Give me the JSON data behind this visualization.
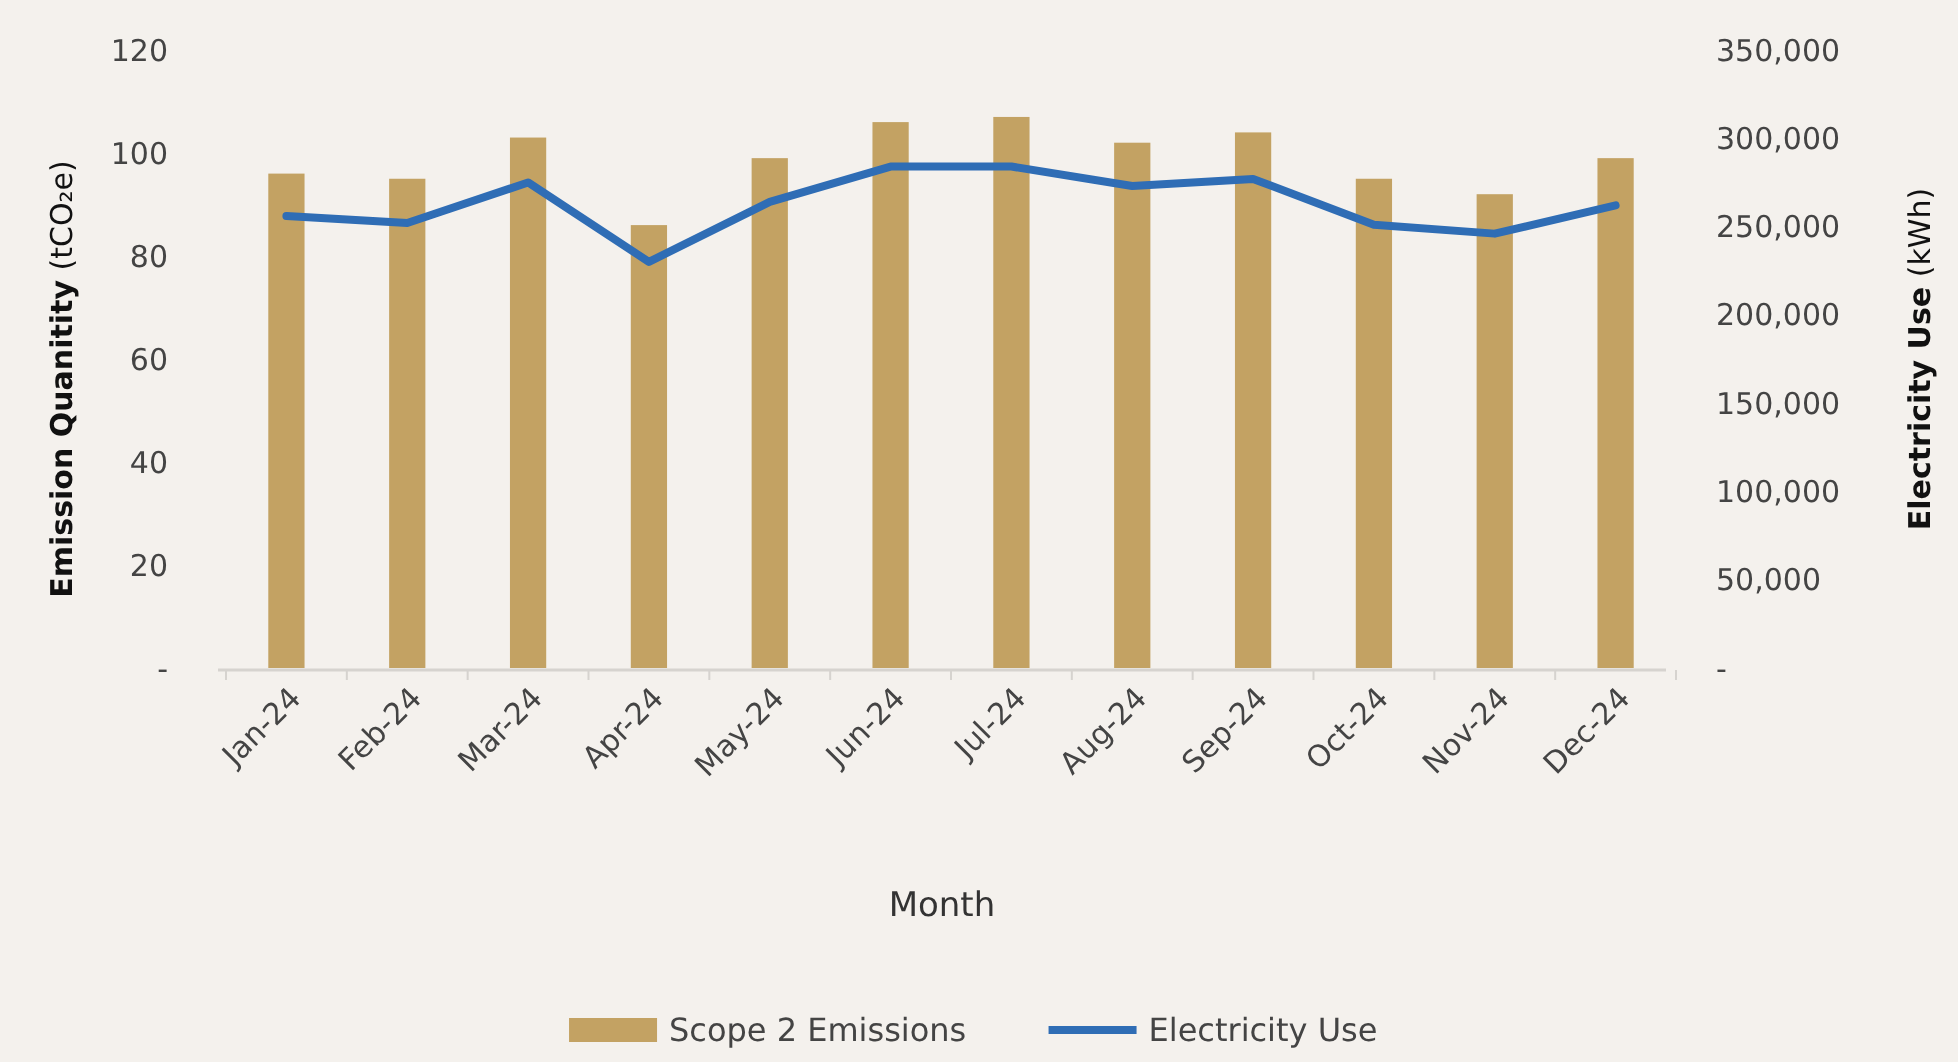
{
  "chart_data": {
    "type": "bar",
    "xlabel": "Month",
    "ylabel": "Emission Quanitity (tCO₂e)",
    "y2label": "Electricity Use (kWh)",
    "categories": [
      "Jan-24",
      "Feb-24",
      "Mar-24",
      "Apr-24",
      "May-24",
      "Jun-24",
      "Jul-24",
      "Aug-24",
      "Sep-24",
      "Oct-24",
      "Nov-24",
      "Dec-24"
    ],
    "series": [
      {
        "name": "Scope 2 Emissions",
        "color": "#c3a263",
        "values": [
          96,
          95,
          103,
          86,
          99,
          106,
          107,
          102,
          104,
          95,
          92,
          99
        ]
      },
      {
        "name": "Electricity Use",
        "type": "line",
        "axis": "y2",
        "color": "#2f6db5",
        "values": [
          256000,
          252000,
          275000,
          230000,
          264000,
          284000,
          284000,
          273000,
          277000,
          251000,
          246000,
          262000
        ]
      }
    ],
    "ylim": [
      0,
      120
    ],
    "yticks": [
      {
        "value": 0,
        "label": "-"
      },
      20,
      40,
      60,
      80,
      100,
      120
    ],
    "y2lim": [
      0,
      350000
    ],
    "y2ticks": [
      {
        "value": 0,
        "label": "-"
      },
      {
        "value": 50000,
        "label": "50,000"
      },
      {
        "value": 100000,
        "label": "100,000"
      },
      {
        "value": 150000,
        "label": "150,000"
      },
      {
        "value": 200000,
        "label": "200,000"
      },
      {
        "value": 250000,
        "label": "250,000"
      },
      {
        "value": 300000,
        "label": "300,000"
      },
      {
        "value": 350000,
        "label": "350,000"
      }
    ],
    "legend": "bottom"
  }
}
